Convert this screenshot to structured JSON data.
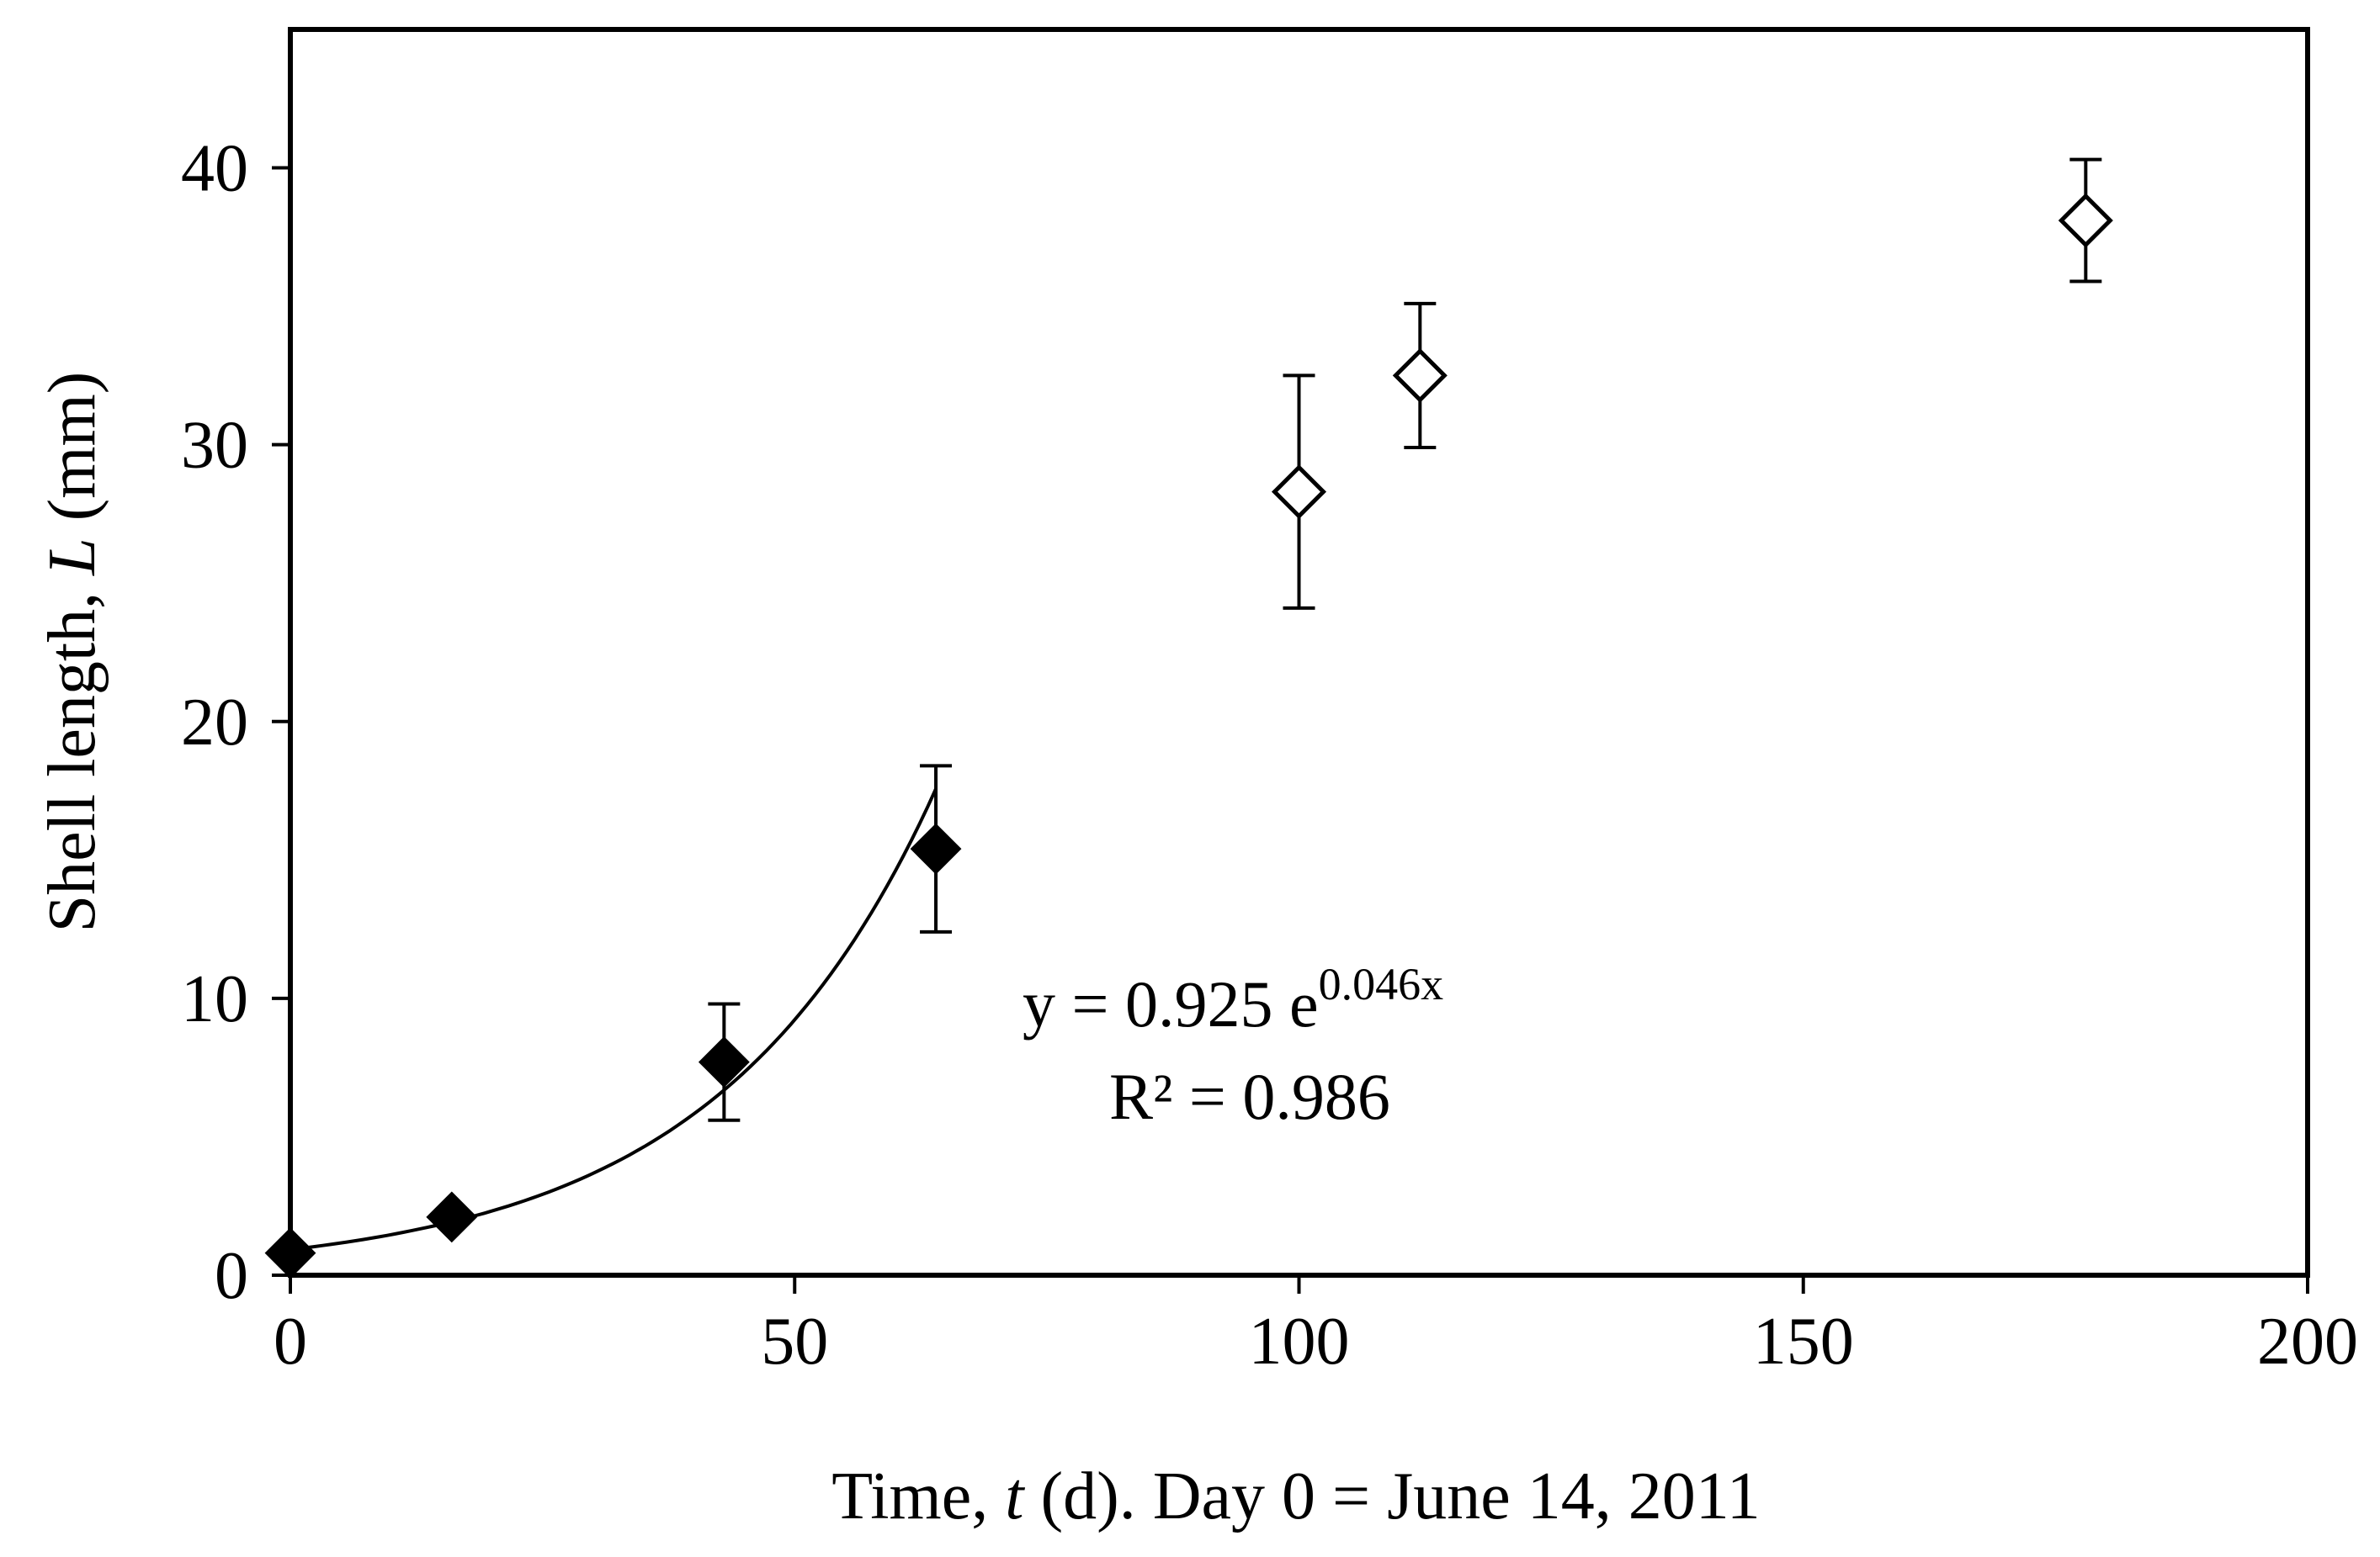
{
  "chart_data": {
    "type": "scatter",
    "xlabel": {
      "prefix": "Time, ",
      "var": "t",
      "suffix": " (d). Day 0 = June 14, 2011"
    },
    "ylabel": {
      "prefix": "Shell length, ",
      "var": "L",
      "suffix": " (mm)"
    },
    "xlim": [
      0,
      200
    ],
    "ylim": [
      0,
      45
    ],
    "xticks": [
      0,
      50,
      100,
      150,
      200
    ],
    "yticks": [
      0,
      10,
      20,
      30,
      40
    ],
    "grid": false,
    "legend": "none",
    "series": [
      {
        "marker": "filled-diamond",
        "color": "#000000",
        "points": [
          {
            "x": 0,
            "y": 0.8,
            "err": null
          },
          {
            "x": 16,
            "y": 2.1,
            "err": null
          },
          {
            "x": 43,
            "y": 7.7,
            "err": 2.1
          },
          {
            "x": 64,
            "y": 15.4,
            "err": 3.0
          }
        ]
      },
      {
        "marker": "open-diamond",
        "color": "#000000",
        "points": [
          {
            "x": 100,
            "y": 28.3,
            "err": 4.2
          },
          {
            "x": 112,
            "y": 32.5,
            "err": 2.6
          },
          {
            "x": 178,
            "y": 38.1,
            "err": 2.2
          }
        ]
      }
    ],
    "fit": {
      "type": "exponential",
      "a": 0.925,
      "b": 0.046,
      "x_range": [
        0,
        64
      ],
      "equation": {
        "lhs": "y = 0.925 e",
        "exponent": "0.046x"
      },
      "r2_label": "R² = 0.986"
    }
  }
}
